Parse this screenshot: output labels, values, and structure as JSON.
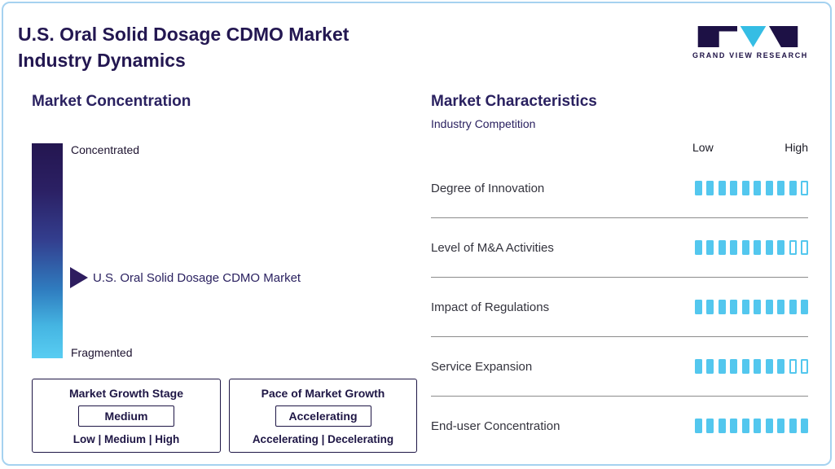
{
  "page": {
    "title_line1": "U.S. Oral Solid Dosage CDMO Market",
    "title_line2": "Industry Dynamics"
  },
  "logo": {
    "text": "GRAND VIEW RESEARCH"
  },
  "market_concentration": {
    "heading": "Market Concentration",
    "scale_top": "Concentrated",
    "scale_bottom": "Fragmented",
    "marker_label": "U.S. Oral Solid Dosage CDMO Market",
    "growth_stage": {
      "title": "Market Growth Stage",
      "value": "Medium",
      "options": "Low | Medium | High"
    },
    "pace": {
      "title": "Pace of Market Growth",
      "value": "Accelerating",
      "options": "Accelerating | Decelerating"
    }
  },
  "market_characteristics": {
    "heading": "Market Characteristics",
    "subheading": "Industry Competition",
    "scale_low": "Low",
    "scale_high": "High",
    "rows": [
      {
        "label": "Degree of Innovation",
        "filled": 9,
        "total": 10
      },
      {
        "label": "Level of M&A Activities",
        "filled": 8,
        "total": 10
      },
      {
        "label": "Impact of Regulations",
        "filled": 10,
        "total": 10
      },
      {
        "label": "Service Expansion",
        "filled": 8,
        "total": 10
      },
      {
        "label": "End-user Concentration",
        "filled": 10,
        "total": 10
      }
    ]
  },
  "chart_data": {
    "type": "bar",
    "title": "U.S. Oral Solid Dosage CDMO Market Industry Dynamics",
    "groups": [
      {
        "name": "Market Concentration",
        "scale": [
          "Concentrated",
          "Fragmented"
        ],
        "marker_label": "U.S. Oral Solid Dosage CDMO Market",
        "marker_position_from_top_pct": 62
      },
      {
        "name": "Market Characteristics - Industry Competition",
        "scale_labels": [
          "Low",
          "High"
        ],
        "segments_total": 10,
        "categories": [
          "Degree of Innovation",
          "Level of M&A Activities",
          "Impact of Regulations",
          "Service Expansion",
          "End-user Concentration"
        ],
        "values": [
          9,
          8,
          10,
          8,
          10
        ]
      }
    ],
    "annotations": [
      "Market Growth Stage: Medium (Low | Medium | High)",
      "Pace of Market Growth: Accelerating (Accelerating | Decelerating)"
    ]
  },
  "colors": {
    "accent_cyan": "#53c7ee",
    "dark_navy": "#231751",
    "border_blue": "#a5d2f0"
  }
}
